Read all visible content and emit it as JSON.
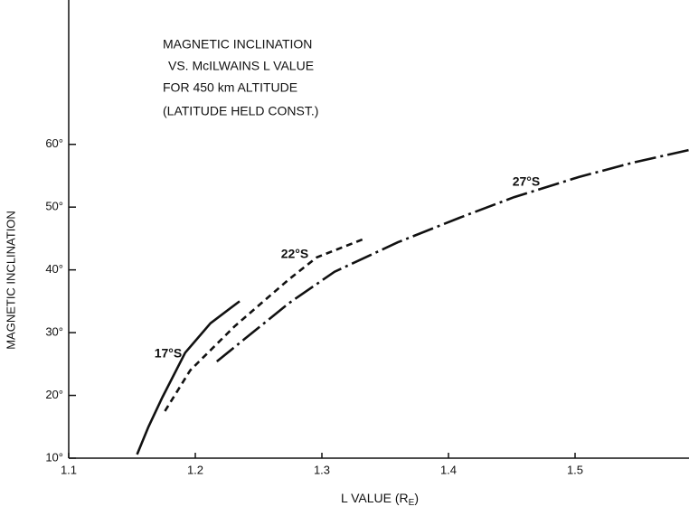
{
  "chart_data": {
    "type": "line",
    "title_lines": [
      "MAGNETIC INCLINATION",
      "VS. McILWAINS L VALUE",
      "FOR 450 km ALTITUDE",
      "(LATITUDE HELD CONST.)"
    ],
    "xlabel": [
      "L VALUE (R",
      "E",
      ")"
    ],
    "ylabel": "MAGNETIC INCLINATION",
    "xlim": [
      1.1,
      1.59
    ],
    "ylim": [
      10,
      83
    ],
    "xticks": [
      1.1,
      1.2,
      1.3,
      1.4,
      1.5
    ],
    "yticks": [
      {
        "value": 10,
        "label": "10°"
      },
      {
        "value": 20,
        "label": "20°"
      },
      {
        "value": 30,
        "label": "30°"
      },
      {
        "value": 40,
        "label": "40°"
      },
      {
        "value": 50,
        "label": "50°"
      },
      {
        "value": 60,
        "label": "60°"
      }
    ],
    "series": [
      {
        "name": "17°S",
        "color": "#111",
        "dash": "solid",
        "x": [
          1.154,
          1.163,
          1.174,
          1.192,
          1.212,
          1.235
        ],
        "values": [
          10.6,
          15,
          19.7,
          26.8,
          31.5,
          35
        ]
      },
      {
        "name": "22°S",
        "color": "#111",
        "dash": "dashed",
        "x": [
          1.176,
          1.196,
          1.231,
          1.274,
          1.296,
          1.334
        ],
        "values": [
          17.5,
          24,
          31,
          38.5,
          42,
          45
        ]
      },
      {
        "name": "27°S",
        "color": "#111",
        "dash": "dashdot",
        "x": [
          1.217,
          1.239,
          1.274,
          1.31,
          1.36,
          1.41,
          1.452,
          1.503,
          1.546,
          1.59
        ],
        "values": [
          25.4,
          29,
          34.7,
          39.7,
          44.4,
          48.4,
          51.6,
          54.8,
          57.1,
          59.1
        ]
      }
    ]
  }
}
